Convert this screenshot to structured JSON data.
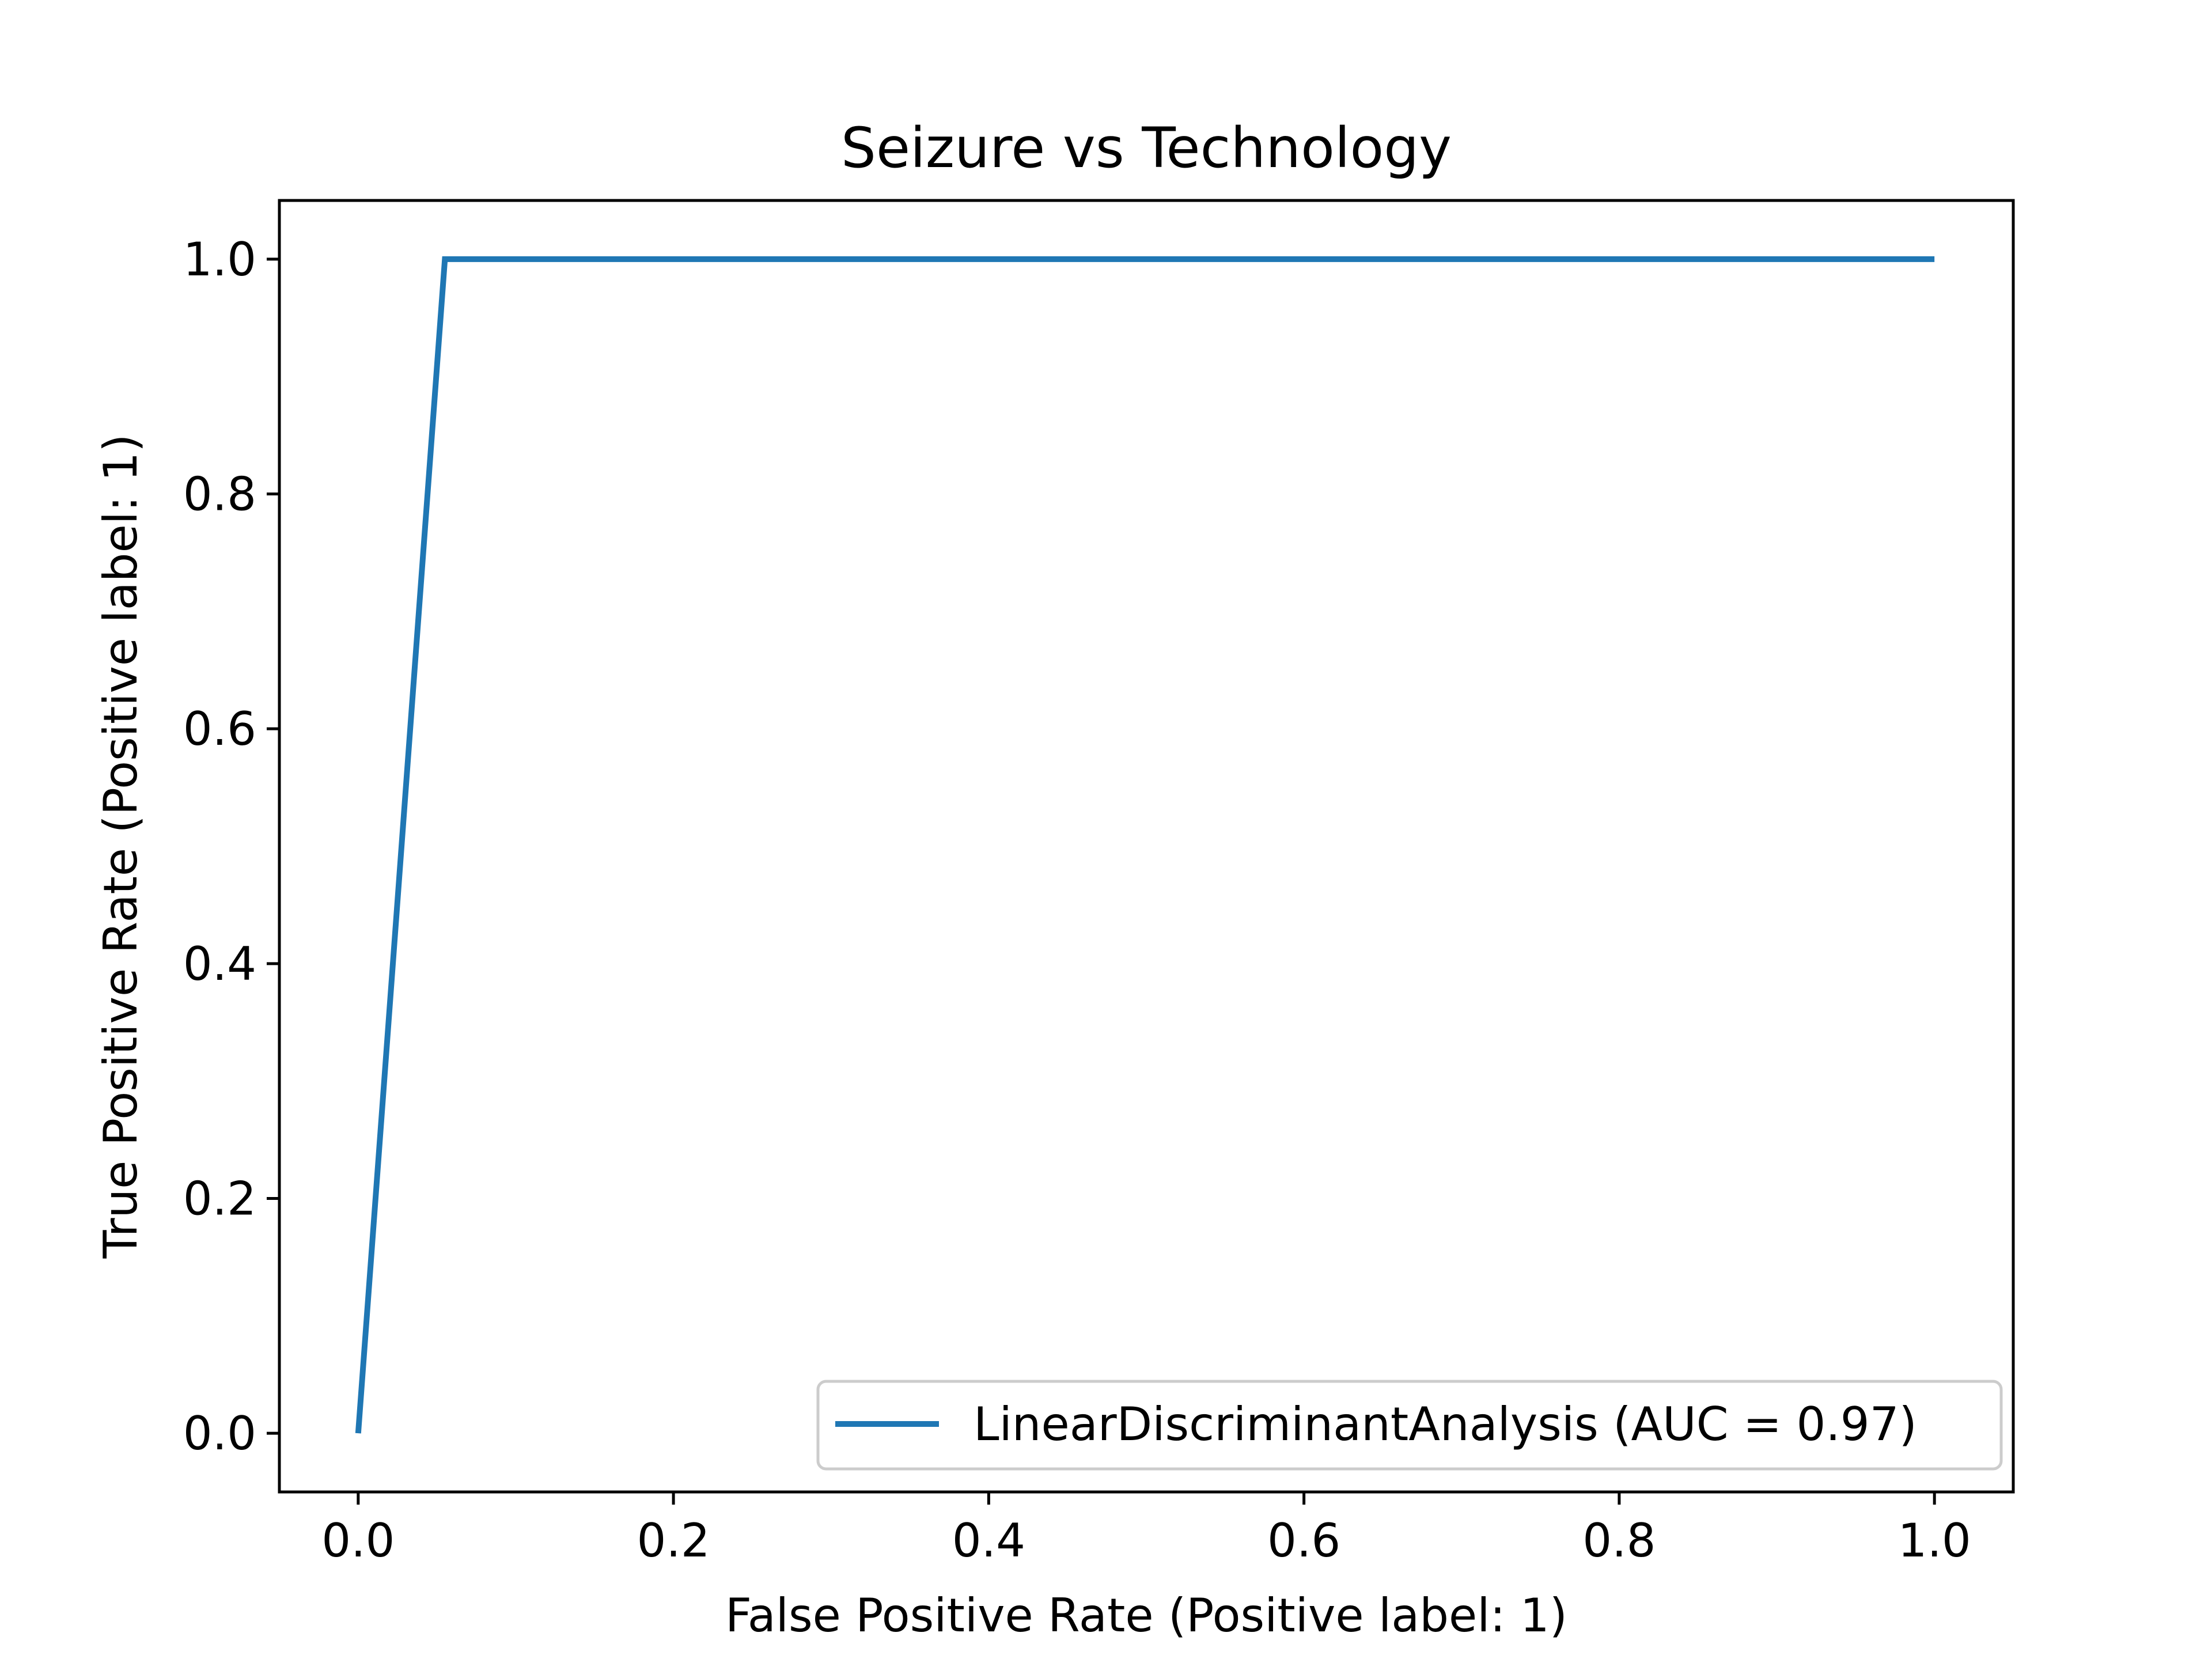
{
  "chart_data": {
    "type": "line",
    "title": "Seizure vs Technology",
    "xlabel": "False Positive Rate (Positive label: 1)",
    "ylabel": "True Positive Rate (Positive label: 1)",
    "xlim": [
      -0.05,
      1.05
    ],
    "ylim": [
      -0.05,
      1.05
    ],
    "xticks": [
      "0.0",
      "0.2",
      "0.4",
      "0.6",
      "0.8",
      "1.0"
    ],
    "yticks": [
      "0.0",
      "0.2",
      "0.4",
      "0.6",
      "0.8",
      "1.0"
    ],
    "grid": false,
    "legend_position": "lower-right",
    "series": [
      {
        "name": "LinearDiscriminantAnalysis (AUC = 0.97)",
        "color": "#1f77b4",
        "x": [
          0.0,
          0.055,
          1.0
        ],
        "y": [
          0.0,
          1.0,
          1.0
        ]
      }
    ]
  }
}
